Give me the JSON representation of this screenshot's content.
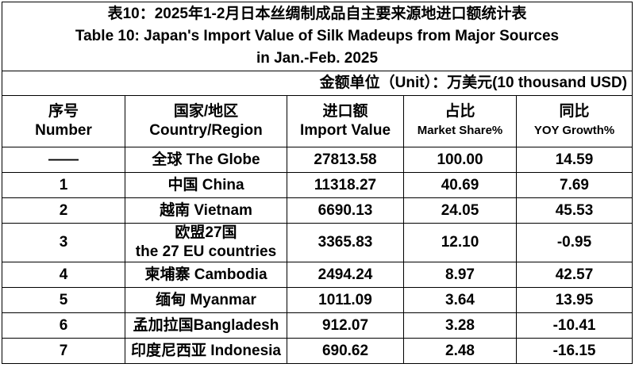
{
  "header": {
    "title_lines": [
      "表10：2025年1-2月日本丝绸制成品自主要来源地进口额统计表",
      "Table 10: Japan's Import Value of Silk Madeups from Major Sources",
      "in Jan.-Feb. 2025"
    ],
    "unit": "金额单位（Unit）：万美元(10 thousand USD)"
  },
  "table": {
    "columns": [
      {
        "zh": "序号",
        "en": "Number"
      },
      {
        "zh": "国家/地区",
        "en": "Country/Region"
      },
      {
        "zh": "进口额",
        "en": "Import Value"
      },
      {
        "zh": "占比",
        "en": "Market Share%"
      },
      {
        "zh": "同比",
        "en": "YOY Growth%"
      }
    ],
    "rows": [
      [
        "——",
        "全球 The Globe",
        "27813.58",
        "100.00",
        "14.59"
      ],
      [
        "1",
        "中国 China",
        "11318.27",
        "40.69",
        "7.69"
      ],
      [
        "2",
        "越南 Vietnam",
        "6690.13",
        "24.05",
        "45.53"
      ],
      [
        "3",
        "欧盟27国\nthe 27 EU countries",
        "3365.83",
        "12.10",
        "-0.95"
      ],
      [
        "4",
        "柬埔寨 Cambodia",
        "2494.24",
        "8.97",
        "42.57"
      ],
      [
        "5",
        "缅甸 Myanmar",
        "1011.09",
        "3.64",
        "13.95"
      ],
      [
        "6",
        "孟加拉国Bangladesh",
        "912.07",
        "3.28",
        "-10.41"
      ],
      [
        "7",
        "印度尼西亚 Indonesia",
        "690.62",
        "2.48",
        "-16.15"
      ]
    ]
  }
}
